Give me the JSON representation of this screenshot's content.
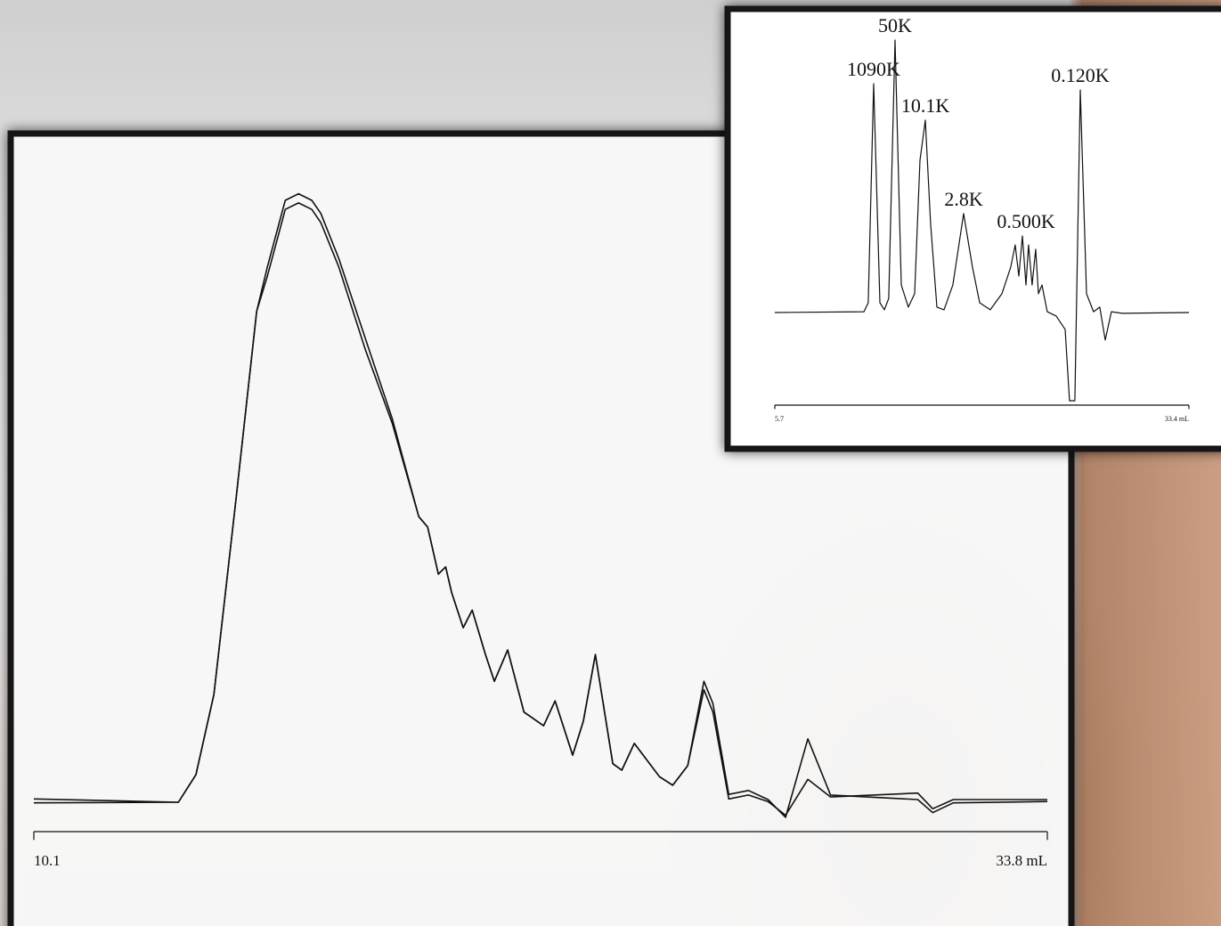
{
  "chart_data": [
    {
      "type": "line",
      "x": [
        10.1,
        13.48,
        13.89,
        14.31,
        14.83,
        15.31,
        15.56,
        15.98,
        16.29,
        16.6,
        16.81,
        17.23,
        17.85,
        18.48,
        19.1,
        19.31,
        19.56,
        19.73,
        19.87,
        20.14,
        20.35,
        20.66,
        20.87,
        21.18,
        21.56,
        22.02,
        22.29,
        22.7,
        22.95,
        23.23,
        23.64,
        23.85,
        24.14,
        24.73,
        25.04,
        25.39,
        25.77,
        25.98,
        26.35,
        26.81,
        27.27,
        27.68,
        28.2,
        28.73,
        30.77,
        31.12,
        31.6,
        33.8
      ],
      "series": [
        {
          "color": "#111111",
          "values": [
            5.0,
            4.5,
            8.7,
            21.0,
            51.0,
            79.6,
            86.4,
            96.6,
            97.6,
            96.6,
            94.6,
            87.7,
            75.5,
            63.2,
            48.2,
            46.6,
            39.4,
            40.5,
            36.6,
            31.2,
            33.9,
            27.1,
            23.0,
            27.8,
            18.3,
            16.2,
            20.0,
            11.7,
            16.9,
            27.1,
            10.4,
            9.4,
            13.5,
            8.4,
            7.1,
            10.1,
            23.0,
            19.6,
            5.7,
            6.3,
            4.9,
            2.2,
            14.2,
            5.6,
            4.9,
            2.9,
            4.4,
            4.6
          ]
        },
        {
          "color": "#111111",
          "values": [
            4.4,
            4.5,
            8.7,
            21.0,
            51.0,
            79.6,
            85.0,
            95.2,
            96.2,
            95.2,
            93.2,
            86.4,
            73.8,
            62.5,
            48.2,
            46.6,
            39.4,
            40.5,
            36.6,
            31.2,
            33.9,
            27.1,
            23.0,
            27.8,
            18.3,
            16.2,
            20.0,
            11.7,
            16.9,
            27.1,
            10.4,
            9.4,
            13.5,
            8.4,
            7.1,
            10.1,
            21.7,
            18.3,
            5.0,
            5.6,
            4.6,
            2.5,
            8.0,
            5.3,
            5.9,
            3.5,
            4.9,
            4.9
          ]
        }
      ],
      "xlim": [
        10.1,
        33.8
      ],
      "xticks": [
        10.1,
        {
          "value": 33.8,
          "label": "33.8 mL"
        }
      ],
      "ylim": [
        0,
        100
      ]
    },
    {
      "type": "line",
      "x": [
        5.7,
        11.66,
        11.95,
        12.31,
        12.73,
        13.03,
        13.32,
        13.74,
        14.16,
        14.63,
        15.05,
        15.41,
        15.77,
        16.12,
        16.54,
        17.02,
        17.61,
        18.33,
        18.92,
        19.4,
        20.11,
        20.89,
        21.48,
        21.78,
        22.02,
        22.26,
        22.5,
        22.67,
        22.91,
        23.15,
        23.33,
        23.57,
        23.92,
        24.52,
        25.12,
        25.41,
        25.77,
        26.13,
        26.55,
        27.02,
        27.44,
        27.8,
        28.21,
        28.93,
        33.4
      ],
      "series": [
        {
          "color": "#111111",
          "values": [
            0,
            0.3,
            3.6,
            84.0,
            3.6,
            1.0,
            5.2,
            100,
            10.1,
            2.0,
            6.9,
            55.9,
            70.6,
            32.7,
            2.0,
            1.0,
            10.1,
            36.3,
            16.7,
            3.6,
            1.0,
            6.9,
            16.7,
            24.8,
            13.4,
            28.1,
            10.1,
            24.8,
            10.1,
            23.2,
            6.9,
            10.1,
            0.3,
            -1.3,
            -6.2,
            -32.4,
            -32.4,
            81.7,
            6.9,
            0.3,
            2.0,
            -10.1,
            0.3,
            -0.3,
            0
          ]
        }
      ],
      "annotations": [
        {
          "text": "1090K",
          "x": 12.31,
          "y": 84.0
        },
        {
          "text": "50K",
          "x": 13.74,
          "y": 100
        },
        {
          "text": "10.1K",
          "x": 15.77,
          "y": 70.6
        },
        {
          "text": "2.8K",
          "x": 18.33,
          "y": 36.3
        },
        {
          "text": "0.500K",
          "x": 22.5,
          "y": 28.1
        },
        {
          "text": "0.120K",
          "x": 26.13,
          "y": 81.7
        }
      ],
      "xlim": [
        5.7,
        33.4
      ],
      "xticks": [
        5.7,
        {
          "value": 33.4,
          "label": "33.4 mL"
        }
      ],
      "ylim": [
        -34,
        100
      ]
    }
  ]
}
